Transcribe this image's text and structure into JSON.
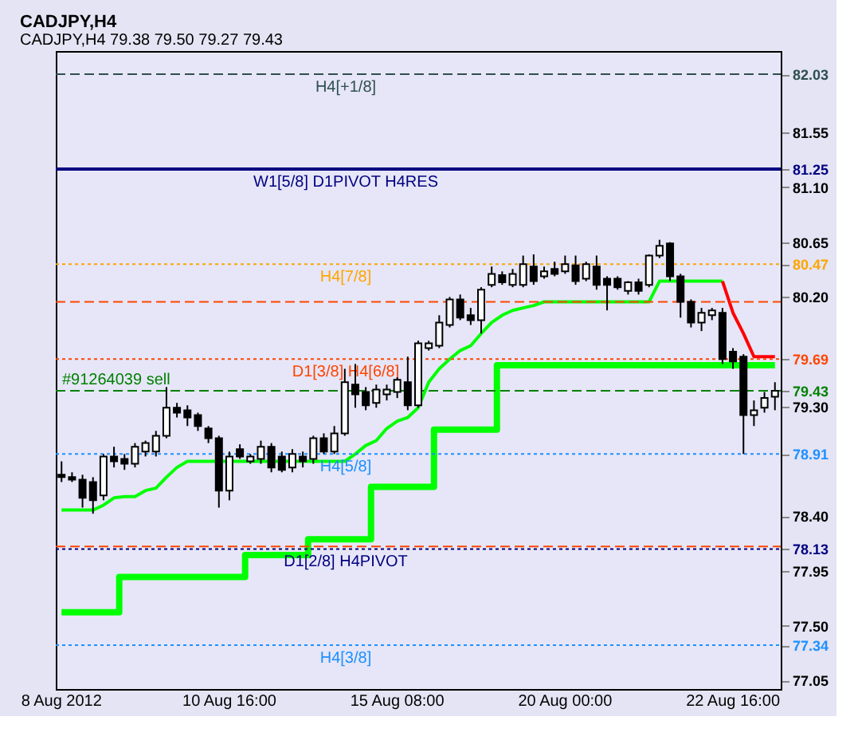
{
  "chart_data": {
    "type": "candlestick",
    "title": "CADJPY,H4",
    "subtitle": "CADJPY,H4  79.38 79.50 79.27 79.43",
    "categories": [
      "8 Aug 2012",
      null,
      null,
      null,
      null,
      null,
      null,
      null,
      null,
      null,
      null,
      null,
      null,
      null,
      null,
      null,
      "10 Aug 16:00",
      null,
      null,
      null,
      null,
      null,
      null,
      null,
      null,
      null,
      null,
      null,
      null,
      null,
      null,
      null,
      "15 Aug 08:00",
      null,
      null,
      null,
      null,
      null,
      null,
      null,
      null,
      null,
      null,
      null,
      null,
      null,
      null,
      null,
      "20 Aug 00:00",
      null,
      null,
      null,
      null,
      null,
      null,
      null,
      null,
      null,
      null,
      null,
      null,
      null,
      null,
      null,
      "22 Aug 16:00",
      null,
      null,
      null,
      null
    ],
    "ohlc": [
      [
        78.74,
        78.85,
        78.68,
        78.72
      ],
      [
        78.72,
        78.76,
        78.68,
        78.7
      ],
      [
        78.7,
        78.74,
        78.47,
        78.55
      ],
      [
        78.68,
        78.72,
        78.42,
        78.53
      ],
      [
        78.57,
        78.91,
        78.53,
        78.89
      ],
      [
        78.89,
        78.97,
        78.8,
        78.85
      ],
      [
        78.87,
        78.91,
        78.78,
        78.83
      ],
      [
        78.83,
        79.0,
        78.8,
        78.97
      ],
      [
        78.93,
        79.02,
        78.89,
        79.0
      ],
      [
        78.93,
        79.1,
        78.89,
        79.06
      ],
      [
        79.06,
        79.46,
        79.04,
        79.29
      ],
      [
        79.29,
        79.33,
        79.21,
        79.25
      ],
      [
        79.27,
        79.31,
        79.14,
        79.21
      ],
      [
        79.23,
        79.25,
        79.1,
        79.14
      ],
      [
        79.12,
        79.14,
        79.0,
        79.04
      ],
      [
        79.04,
        79.06,
        78.47,
        78.61
      ],
      [
        78.61,
        78.93,
        78.53,
        78.89
      ],
      [
        78.95,
        78.99,
        78.87,
        78.89
      ],
      [
        78.85,
        78.91,
        78.83,
        78.89
      ],
      [
        78.87,
        79.02,
        78.83,
        78.97
      ],
      [
        78.97,
        79.0,
        78.76,
        78.8
      ],
      [
        78.89,
        78.93,
        78.76,
        78.78
      ],
      [
        78.8,
        78.95,
        78.76,
        78.91
      ],
      [
        78.89,
        78.93,
        78.8,
        78.85
      ],
      [
        78.87,
        79.06,
        78.83,
        79.04
      ],
      [
        79.04,
        79.08,
        78.91,
        78.93
      ],
      [
        78.93,
        79.14,
        78.91,
        79.08
      ],
      [
        79.08,
        79.61,
        79.06,
        79.5
      ],
      [
        79.48,
        79.65,
        79.29,
        79.4
      ],
      [
        79.42,
        79.46,
        79.27,
        79.31
      ],
      [
        79.33,
        79.48,
        79.29,
        79.44
      ],
      [
        79.4,
        79.48,
        79.35,
        79.44
      ],
      [
        79.42,
        79.54,
        79.37,
        79.52
      ],
      [
        79.5,
        79.71,
        79.27,
        79.31
      ],
      [
        79.31,
        79.84,
        79.29,
        79.82
      ],
      [
        79.78,
        79.84,
        79.76,
        79.82
      ],
      [
        79.8,
        80.05,
        79.78,
        79.99
      ],
      [
        79.97,
        80.2,
        79.95,
        80.18
      ],
      [
        80.18,
        80.22,
        80.01,
        80.03
      ],
      [
        80.05,
        80.11,
        79.97,
        80.01
      ],
      [
        80.01,
        80.28,
        79.9,
        80.26
      ],
      [
        80.3,
        80.45,
        80.28,
        80.39
      ],
      [
        80.38,
        80.41,
        80.3,
        80.32
      ],
      [
        80.3,
        80.43,
        80.28,
        80.39
      ],
      [
        80.3,
        80.54,
        80.28,
        80.47
      ],
      [
        80.45,
        80.55,
        80.3,
        80.33
      ],
      [
        80.37,
        80.45,
        80.35,
        80.41
      ],
      [
        80.43,
        80.49,
        80.37,
        80.39
      ],
      [
        80.41,
        80.54,
        80.39,
        80.47
      ],
      [
        80.46,
        80.54,
        80.3,
        80.33
      ],
      [
        80.35,
        80.49,
        80.33,
        80.47
      ],
      [
        80.45,
        80.54,
        80.26,
        80.3
      ],
      [
        80.35,
        80.37,
        80.09,
        80.3
      ],
      [
        80.35,
        80.37,
        80.26,
        80.28
      ],
      [
        80.25,
        80.33,
        80.22,
        80.32
      ],
      [
        80.32,
        80.35,
        80.22,
        80.25
      ],
      [
        80.3,
        80.55,
        80.28,
        80.54
      ],
      [
        80.54,
        80.67,
        80.52,
        80.62
      ],
      [
        80.64,
        80.65,
        80.33,
        80.37
      ],
      [
        80.37,
        80.39,
        80.03,
        80.16
      ],
      [
        80.16,
        80.18,
        79.95,
        79.99
      ],
      [
        79.99,
        80.11,
        79.92,
        80.07
      ],
      [
        80.05,
        80.11,
        80.01,
        80.09
      ],
      [
        80.07,
        80.11,
        79.65,
        79.69
      ],
      [
        79.75,
        79.78,
        79.61,
        79.67
      ],
      [
        79.71,
        79.73,
        78.91,
        79.23
      ],
      [
        79.23,
        79.35,
        79.14,
        79.27
      ],
      [
        79.29,
        79.42,
        79.25,
        79.37
      ],
      [
        79.38,
        79.5,
        79.27,
        79.43
      ]
    ],
    "series": [
      {
        "type": "line",
        "color": "#00ff00",
        "values": [
          78.45,
          78.45,
          78.45,
          78.45,
          78.49,
          78.55,
          78.56,
          78.56,
          78.61,
          78.63,
          78.72,
          78.8,
          78.85,
          78.85,
          78.85,
          78.85,
          78.85,
          78.85,
          78.85,
          78.85,
          78.85,
          78.85,
          78.85,
          78.85,
          78.85,
          78.85,
          78.85,
          78.85,
          78.91,
          78.98,
          79.02,
          79.12,
          79.18,
          79.21,
          79.29,
          79.5,
          79.61,
          79.69,
          79.76,
          79.8,
          79.9,
          79.99,
          80.05,
          80.09,
          80.11,
          80.13,
          80.16,
          80.16,
          80.16,
          80.16,
          80.16,
          80.16,
          80.16,
          80.16,
          80.16,
          80.16,
          80.16,
          80.33,
          80.33,
          80.33,
          80.33,
          80.33,
          80.33,
          80.33,
          null,
          null,
          null,
          null,
          null
        ]
      },
      {
        "type": "line",
        "color": "#ff0000",
        "values": [
          null,
          null,
          null,
          null,
          null,
          null,
          null,
          null,
          null,
          null,
          null,
          null,
          null,
          null,
          null,
          null,
          null,
          null,
          null,
          null,
          null,
          null,
          null,
          null,
          null,
          null,
          null,
          null,
          null,
          null,
          null,
          null,
          null,
          null,
          null,
          null,
          null,
          null,
          null,
          null,
          null,
          null,
          null,
          null,
          null,
          null,
          null,
          null,
          null,
          null,
          null,
          null,
          null,
          null,
          null,
          null,
          null,
          null,
          null,
          null,
          null,
          null,
          null,
          80.33,
          80.07,
          79.9,
          79.71,
          79.71,
          79.71
        ]
      },
      {
        "type": "step",
        "color": "#00ff00",
        "values": [
          77.61,
          77.61,
          77.61,
          77.61,
          77.61,
          77.61,
          77.9,
          77.9,
          77.9,
          77.9,
          77.9,
          77.9,
          77.9,
          77.9,
          77.9,
          77.9,
          77.9,
          77.9,
          78.08,
          78.08,
          78.08,
          78.08,
          78.08,
          78.08,
          78.21,
          78.21,
          78.21,
          78.21,
          78.21,
          78.21,
          78.64,
          78.64,
          78.64,
          78.64,
          78.64,
          78.64,
          79.11,
          79.11,
          79.11,
          79.11,
          79.11,
          79.11,
          79.64,
          79.64,
          79.64,
          79.64,
          79.64,
          79.64,
          79.64,
          79.64,
          79.64,
          79.64,
          79.64,
          79.64,
          79.64,
          79.64,
          79.64,
          79.64,
          79.64,
          79.64,
          79.64,
          79.64,
          79.64,
          79.64,
          79.64,
          79.64,
          79.64,
          79.64,
          79.64
        ]
      }
    ],
    "ylim": [
      76.98,
      82.22
    ],
    "yticks": [
      77.05,
      {
        "value": 77.5,
        "label": "77.50"
      },
      77.95,
      {
        "value": 78.4,
        "label": "78.40"
      },
      {
        "value": 79.3,
        "label": "79.30"
      },
      {
        "value": 80.2,
        "label": "80.20"
      },
      80.65,
      {
        "value": 81.1,
        "label": "81.10"
      },
      81.55,
      82.03,
      81.25,
      80.47,
      79.69,
      79.43,
      78.91,
      78.13,
      77.34
    ],
    "grid": false,
    "ref_lines": [
      {
        "axis": "y",
        "value": 82.03,
        "label": "H4[+1/8]",
        "color": "#2f4f4f",
        "line_style": "dashed"
      },
      {
        "axis": "y",
        "value": 81.25,
        "label": "W1[5/8] D1PIVOT H4RES",
        "color": "#000080",
        "line_style": "solid"
      },
      {
        "axis": "y",
        "value": 80.47,
        "label": "H4[7/8]",
        "color": "#ffa500",
        "line_style": "dotted"
      },
      {
        "axis": "y",
        "value": 80.16,
        "color": "#ff4500",
        "line_style": "dashed"
      },
      {
        "axis": "y",
        "value": 79.69,
        "label": "D1[3/8] H4[6/8]",
        "color": "#ff4500",
        "line_style": "dotted"
      },
      {
        "axis": "y",
        "value": 79.43,
        "label": "#91264039 sell",
        "color": "#008000",
        "line_style": "dashed"
      },
      {
        "axis": "y",
        "value": 78.91,
        "label": "H4[5/8]",
        "color": "#1e90ff",
        "line_style": "dotted"
      },
      {
        "axis": "y",
        "value": 78.15,
        "color": "#ff4500",
        "line_style": "dashed"
      },
      {
        "axis": "y",
        "value": 78.13,
        "label": "D1[2/8] H4PIVOT",
        "color": "#000080",
        "line_style": "dotted"
      },
      {
        "axis": "y",
        "value": 77.34,
        "label": "H4[3/8]",
        "color": "#1e90ff",
        "line_style": "dotted"
      }
    ]
  }
}
